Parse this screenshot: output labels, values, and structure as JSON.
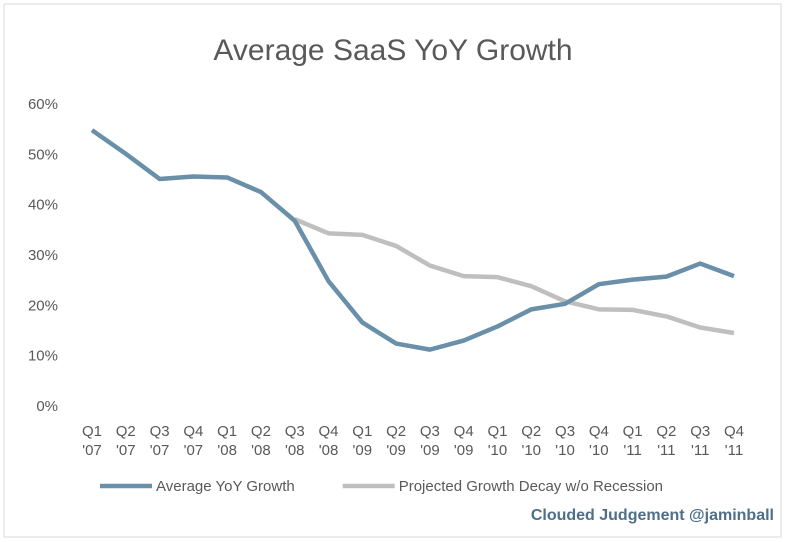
{
  "chart_data": {
    "type": "line",
    "title": "Average SaaS YoY Growth",
    "categories": [
      "Q1 '07",
      "Q2 '07",
      "Q3 '07",
      "Q4 '07",
      "Q1 '08",
      "Q2 '08",
      "Q3 '08",
      "Q4 '08",
      "Q1 '09",
      "Q2 '09",
      "Q3 '09",
      "Q4 '09",
      "Q1 '10",
      "Q2 '10",
      "Q3 '10",
      "Q4 '10",
      "Q1 '11",
      "Q2 '11",
      "Q3 '11",
      "Q4 '11"
    ],
    "series": [
      {
        "name": "Projected Growth Decay w/o Recession",
        "color": "#bfbfbf",
        "values": [
          null,
          null,
          null,
          null,
          null,
          null,
          37.3,
          34.5,
          34.2,
          32,
          28.1,
          26,
          25.8,
          24,
          21,
          19.4,
          19.3,
          18,
          15.8,
          14.7
        ]
      },
      {
        "name": "Average YoY Growth",
        "color": "#6a8fa8",
        "values": [
          55,
          50.3,
          45.3,
          45.8,
          45.6,
          42.7,
          37,
          25,
          16.8,
          12.6,
          11.4,
          13.2,
          16,
          19.4,
          20.5,
          24.4,
          25.3,
          25.9,
          28.5,
          26
        ]
      }
    ],
    "legend_order": [
      1,
      0
    ],
    "ylim": [
      0,
      60
    ],
    "yticks": [
      {
        "value": 0,
        "label": "0%"
      },
      {
        "value": 10,
        "label": "10%"
      },
      {
        "value": 20,
        "label": "20%"
      },
      {
        "value": 30,
        "label": "30%"
      },
      {
        "value": 40,
        "label": "40%"
      },
      {
        "value": 50,
        "label": "50%"
      },
      {
        "value": 60,
        "label": "60%"
      }
    ],
    "grid": false,
    "source": "Clouded Judgement @jaminball"
  }
}
